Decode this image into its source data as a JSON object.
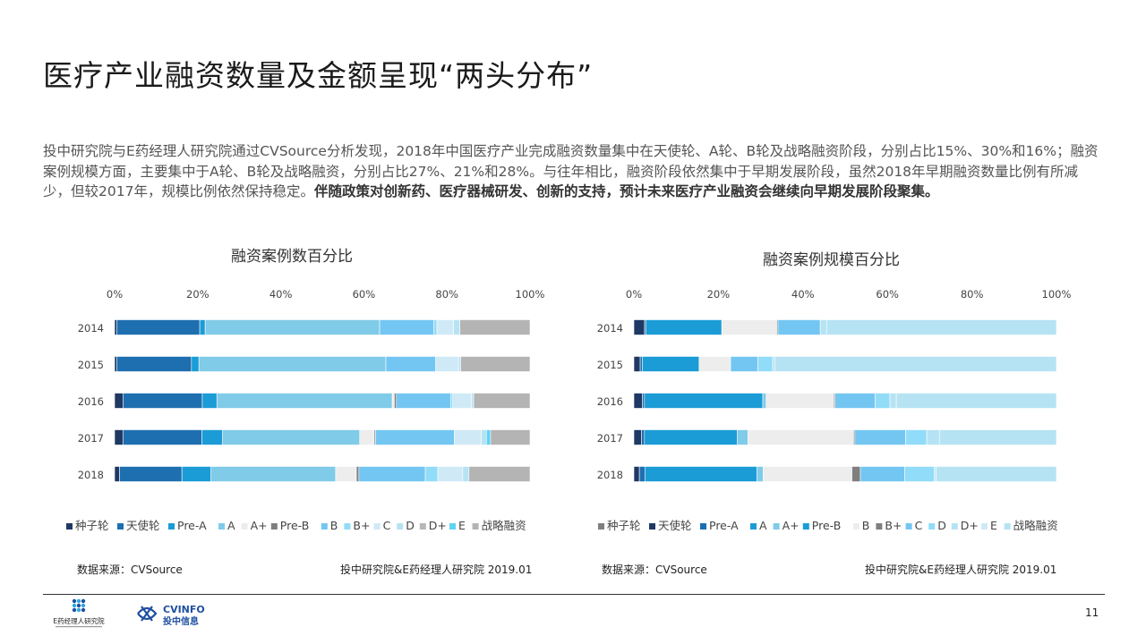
{
  "title": "医疗产业融资数量及金额呈现“两头分布”",
  "description": {
    "normal": "投中研究院与E药经理人研究院通过CVSource分析发现，2018年中国医疗产业完成融资数量集中在天使轮、A轮、B轮及战略融资阶段，分别占比15%、30%和16%；融资案例规模方面，主要集中于A轮、B轮及战略融资，分别占比27%、21%和28%。与往年相比，融资阶段依然集中于早期发展阶段，虽然2018年早期融资数量比例有所减少，但较2017年，规模比例依然保持稳定。",
    "bold": "伴随政策对创新药、医疗器械研发、创新的支持，预计未来医疗产业融资会继续向早期发展阶段聚集。"
  },
  "colors": {
    "种子轮": "#1f3864",
    "天使轮": "#1e6fb0",
    "Pre-A": "#1b9cd6",
    "A": "#7fcbe8",
    "A+": "#ededed",
    "Pre-B": "#7f7f7f",
    "B": "#74c6f2",
    "B+": "#91dcf8",
    "C": "#cfeaf6",
    "D": "#b6e3f3",
    "D+": "#b7b7b7",
    "E": "#5fd2f6",
    "战略融资": "#b4b4b4"
  },
  "chart_data": [
    {
      "type": "bar",
      "orientation": "horizontal",
      "stacked": true,
      "title": "融资案例数百分比",
      "categories": [
        "2014",
        "2015",
        "2016",
        "2017",
        "2018"
      ],
      "xticks": [
        "0%",
        "20%",
        "40%",
        "60%",
        "80%",
        "100%"
      ],
      "xlim": [
        0,
        100
      ],
      "legend": [
        "种子轮",
        "天使轮",
        "Pre-A",
        "A",
        "A+",
        "Pre-B",
        "B",
        "B+",
        "C",
        "D",
        "D+",
        "E",
        "战略融资"
      ],
      "legend_position": "bottom",
      "series": [
        {
          "name": "种子轮",
          "color": "#1f3864",
          "values": [
            0.5,
            0.5,
            2,
            2,
            1.2
          ]
        },
        {
          "name": "天使轮",
          "color": "#1e6fb0",
          "values": [
            20,
            18,
            19,
            19,
            15
          ]
        },
        {
          "name": "Pre-A",
          "color": "#1b9cd6",
          "values": [
            1.3,
            1.8,
            3.5,
            5,
            7
          ]
        },
        {
          "name": "A",
          "color": "#7fcbe8",
          "values": [
            42,
            45,
            42,
            33,
            30
          ]
        },
        {
          "name": "A+",
          "color": "#ededed",
          "values": [
            0,
            0,
            0.5,
            3.5,
            5
          ]
        },
        {
          "name": "Pre-B",
          "color": "#7f7f7f",
          "values": [
            0,
            0,
            0.5,
            0.3,
            0.6
          ]
        },
        {
          "name": "B",
          "color": "#74c6f2",
          "values": [
            13,
            12,
            13,
            19,
            16
          ]
        },
        {
          "name": "B+",
          "color": "#91dcf8",
          "values": [
            0.8,
            0,
            0.5,
            0,
            3
          ]
        },
        {
          "name": "C",
          "color": "#cfeaf6",
          "values": [
            4,
            5.5,
            4.5,
            6.5,
            6
          ]
        },
        {
          "name": "D",
          "color": "#b6e3f3",
          "values": [
            1.5,
            0.5,
            0.5,
            1.2,
            1.5
          ]
        },
        {
          "name": "D+",
          "color": "#b7b7b7",
          "values": [
            0,
            0,
            0,
            0,
            0
          ]
        },
        {
          "name": "E",
          "color": "#5fd2f6",
          "values": [
            0,
            0,
            0,
            1,
            0
          ]
        },
        {
          "name": "战略融资",
          "color": "#b4b4b4",
          "values": [
            16.9,
            16.7,
            13.5,
            9.5,
            14.7
          ]
        }
      ]
    },
    {
      "type": "bar",
      "orientation": "horizontal",
      "stacked": true,
      "title": "融资案例规模百分比",
      "categories": [
        "2014",
        "2015",
        "2016",
        "2017",
        "2018"
      ],
      "xticks": [
        "0%",
        "20%",
        "40%",
        "60%",
        "80%",
        "100%"
      ],
      "xlim": [
        0,
        100
      ],
      "legend": [
        "种子轮",
        "天使轮",
        "Pre-A",
        "A",
        "A+",
        "Pre-B",
        "B",
        "B+",
        "C",
        "D",
        "D+",
        "E",
        "战略融资"
      ],
      "legend_position": "bottom",
      "series": [
        {
          "name": "种子轮",
          "color": "#7f7f7f",
          "values": [
            0,
            0,
            0,
            0,
            0
          ]
        },
        {
          "name": "天使轮",
          "color": "#1f3864",
          "values": [
            2.5,
            1.5,
            2,
            1.8,
            1.3
          ]
        },
        {
          "name": "Pre-A",
          "color": "#1e6fb0",
          "values": [
            0.3,
            0.5,
            0.5,
            0.7,
            1.3
          ]
        },
        {
          "name": "A",
          "color": "#1b9cd6",
          "values": [
            18,
            13.5,
            28,
            22,
            26.5
          ]
        },
        {
          "name": "A+",
          "color": "#7fcbe8",
          "values": [
            0,
            0,
            0.8,
            2.5,
            1.5
          ]
        },
        {
          "name": "Pre-B",
          "color": "#1b9cd6",
          "values": [
            0,
            0,
            0,
            0,
            0
          ]
        },
        {
          "name": "B",
          "color": "#ededed",
          "values": [
            13,
            7.5,
            16,
            25,
            21
          ]
        },
        {
          "name": "B+",
          "color": "#7f7f7f",
          "values": [
            0.3,
            0,
            0.3,
            0.3,
            2
          ]
        },
        {
          "name": "C",
          "color": "#74c6f2",
          "values": [
            10,
            6.5,
            9.5,
            12,
            10.5
          ]
        },
        {
          "name": "D",
          "color": "#91dcf8",
          "values": [
            0,
            3.5,
            3.5,
            5,
            7
          ]
        },
        {
          "name": "D+",
          "color": "#b6e3f3",
          "values": [
            1.5,
            0.5,
            1.5,
            3,
            0.4
          ]
        },
        {
          "name": "E",
          "color": "#cfeaf6",
          "values": [
            0,
            0,
            0,
            0,
            0
          ]
        },
        {
          "name": "战略融资",
          "color": "#b6e3f3",
          "values": [
            54.4,
            67,
            37.9,
            27.7,
            28.5
          ]
        }
      ]
    }
  ],
  "sources": {
    "left_label": "数据来源：CVSource",
    "left_org": "投中研究院&E药经理人研究院   2019.01",
    "right_label": "数据来源：CVSource",
    "right_org": "投中研究院&E药经理人研究院   2019.01"
  },
  "logos": {
    "e_pharma": "E药经理人研究院",
    "cv_name": "CVINFO",
    "cv_sub": "投中信息"
  },
  "page_number": "11"
}
